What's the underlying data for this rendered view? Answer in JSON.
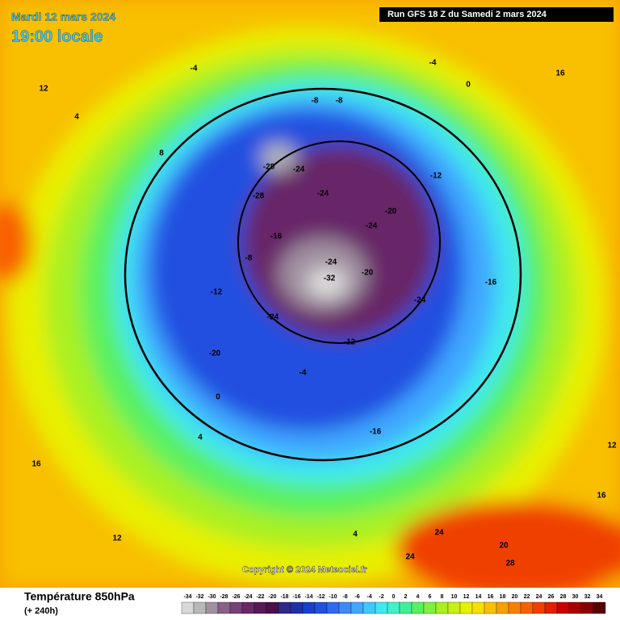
{
  "header": {
    "date": "Mardi 12 mars 2024",
    "time": "19:00 locale",
    "run": "Run GFS 18 Z du Samedi 2 mars 2024"
  },
  "footer": {
    "title": "Température 850hPa",
    "subtitle": "(+ 240h)",
    "copyright": "Copyright © 2024 Meteociel.fr"
  },
  "legend": {
    "labels": [
      -34,
      -32,
      -30,
      -28,
      -26,
      -24,
      -22,
      -20,
      -18,
      -16,
      -14,
      -12,
      -10,
      -8,
      -6,
      -4,
      -2,
      0,
      2,
      4,
      6,
      8,
      10,
      12,
      14,
      16,
      18,
      20,
      22,
      24,
      26,
      28,
      30,
      32,
      34
    ],
    "colors": [
      "#d8d8d8",
      "#b8b8b8",
      "#a090a0",
      "#886088",
      "#784078",
      "#682868",
      "#581858",
      "#481048",
      "#302888",
      "#2030a8",
      "#1840c8",
      "#2050e0",
      "#3068f0",
      "#4088f8",
      "#40a8ff",
      "#40c8ff",
      "#40e8f0",
      "#40f0c8",
      "#40f098",
      "#58f060",
      "#80f040",
      "#a8f020",
      "#c8f010",
      "#e8f000",
      "#f8e000",
      "#f8c000",
      "#f8a000",
      "#f88000",
      "#f86000",
      "#f04000",
      "#e02000",
      "#c80000",
      "#a80000",
      "#880000",
      "#580000"
    ]
  },
  "map": {
    "labels": [
      -32,
      -28,
      -28,
      -24,
      -24,
      -24,
      -24,
      -20,
      -20,
      -24,
      -16,
      -12,
      -12,
      -8,
      -8,
      -4,
      -4,
      0,
      0,
      -4,
      4,
      4,
      8,
      12,
      12,
      16,
      16,
      20,
      24,
      28,
      24,
      -16,
      -12,
      -8,
      -20,
      -24,
      -16,
      12,
      16,
      4
    ]
  }
}
